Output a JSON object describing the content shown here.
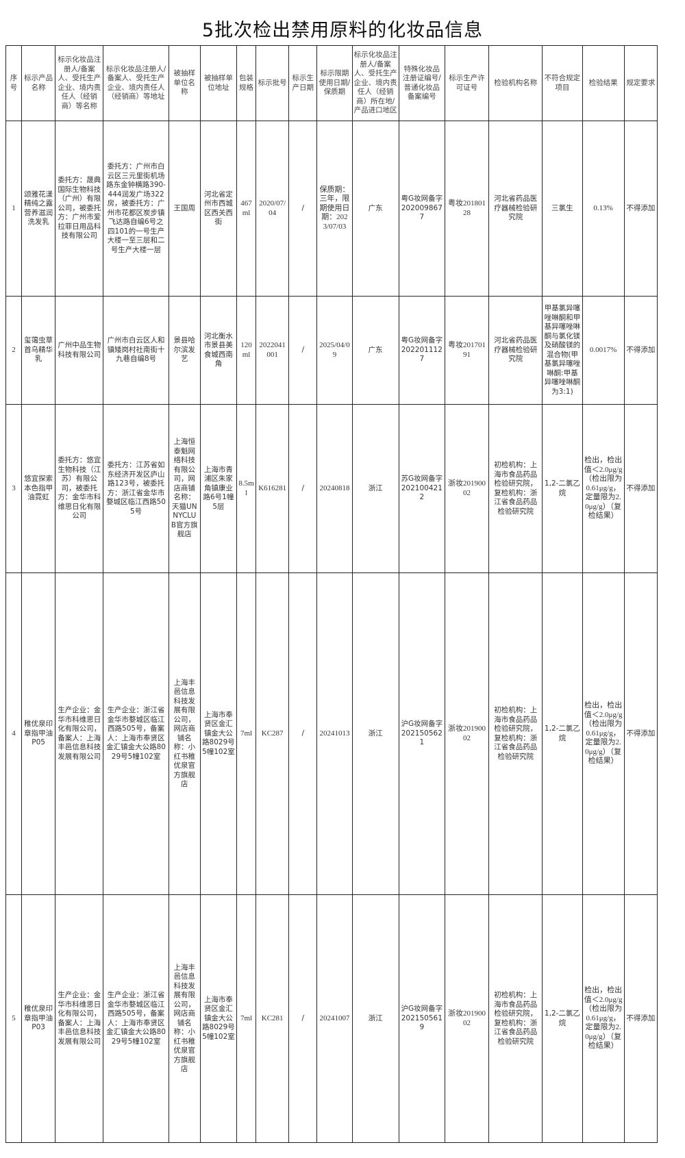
{
  "title": "5批次检出禁用原料的化妆品信息",
  "headers": [
    "序号",
    "标示产品名称",
    "标示化妆品注册人/备案人、受托生产企业、境内责任人（经销商）等名称",
    "标示化妆品注册人/备案人、受托生产企业、境内责任人（经销商）等地址",
    "被抽样单位名称",
    "被抽样单位地址",
    "包装规格",
    "标示批号",
    "标示生产日期",
    "标示限期使用日期/保质期",
    "标示化妆品注册人/备案人、受托生产企业、境内责任人（经销商）所在地/产品进口地区",
    "特殊化妆品注册证编号/普通化妆品备案编号",
    "标示生产许可证号",
    "检验机构名称",
    "不符合规定项目",
    "检验结果",
    "规定要求"
  ],
  "rows": [
    [
      "1",
      "颂雅花漾精纯之露营养滋润洗发乳",
      "委托方：晟典国际生物科技（广州）有限公司，被委托方：广州市爱拉菲日用品科技有限公司",
      "委托方：广州市白云区三元里街机场路东金钟横路390-444润发广场322房，被委托方：广州市花都区炭步镇飞达路自编6号之四101的一号生产大楼一至三层和二号生产大楼一层",
      "王国周",
      "河北省定州市西城区西关西街",
      "467ml",
      "2020/07/04",
      "/",
      "保质期：三年，限期使用日期：2023/07/03",
      "广东",
      "粤G妆网备字2020098677",
      "粤妆20180128",
      "河北省药品医疗器械检验研究院",
      "三氯生",
      "0.13%",
      "不得添加"
    ],
    [
      "2",
      "玺蔼虫草首乌精华乳",
      "广州中品生物科技有限公司",
      "广州市白云区人和镇矮岗村社南街十九巷自编8号",
      "景县哈尔滨发艺",
      "河北衡水市景县美食城西南角",
      "120ml",
      "2022041001",
      "/",
      "2025/04/09",
      "广东",
      "粤G妆网备字2022011127",
      "粤妆20170191",
      "河北省药品医疗器械检验研究院",
      "甲基氯异噻唑啉酮和甲基异噻唑啉酮与氯化镁及硝酸镁的混合物(甲基氯异噻唑啉酮:甲基异噻唑啉酮为3:1)",
      "0.0017%",
      "不得添加"
    ],
    [
      "3",
      "悠宜探索本色指甲油霓虹",
      "委托方：悠宜生物科技（江苏）有限公司，被委托方：金华市科维思日化有限公司",
      "委托方：江苏省如东经济开发区庐山路123号，被委托方：浙江省金华市婺城区临江西路505号",
      "上海恒泰魁网络科技有限公司，网店商铺名称：天猫UNNYCLUB官方旗舰店",
      "上海市青浦区朱家角镇康业路6号1幢5层",
      "8.5ml",
      "K616281",
      "/",
      "20240818",
      "浙江",
      "苏G妆网备字2021004212",
      "浙妆20190002",
      "初检机构：上海市食品药品检验研究院，复检机构：浙江省食品药品检验研究院",
      "1,2-二氯乙烷",
      "检出，检出值＜2.0μg/g（检出限为0.61μg/g，定量限为2.0μg/g）（复检结果）",
      "不得添加"
    ],
    [
      "4",
      "稚优泉印章指甲油P05",
      "生产企业：金华市科维思日化有限公司，备案人：上海丰邑信息科技发展有限公司",
      "生产企业：浙江省金华市婺城区临江西路505号，备案人：上海市奉贤区金汇镇金大公路8029号5幢102室",
      "上海丰邑信息科技发展有限公司，网店商铺名称：小红书稚优泉官方旗舰店",
      "上海市奉贤区金汇镇金大公路8029号5幢102室",
      "7ml",
      "KC287",
      "/",
      "20241013",
      "浙江",
      "沪G妆网备字2021505621",
      "浙妆20190002",
      "初检机构：上海市食品药品检验研究院，复检机构：浙江省食品药品检验研究院",
      "1,2-二氯乙烷",
      "检出，检出值＜2.0μg/g（检出限为0.61μg/g，定量限为2.0μg/g）（复检结果）",
      "不得添加"
    ],
    [
      "5",
      "稚优泉印章指甲油P03",
      "生产企业：金华市科维思日化有限公司，备案人：上海丰邑信息科技发展有限公司",
      "生产企业：浙江省金华市婺城区临江西路505号，备案人：上海市奉贤区金汇镇金大公路8029号5幢102室",
      "上海丰邑信息科技发展有限公司，网店商铺名称：小红书稚优泉官方旗舰店",
      "上海市奉贤区金汇镇金大公路8029号5幢102室",
      "7ml",
      "KC281",
      "/",
      "20241007",
      "浙江",
      "沪G妆网备字2021505619",
      "浙妆20190002",
      "初检机构：上海市食品药品检验研究院，复检机构：浙江省食品药品检验研究院",
      "1,2-二氯乙烷",
      "检出，检出值＜2.0μg/g（检出限为0.61μg/g，定量限为2.0μg/g）（复检结果）",
      "不得添加"
    ]
  ]
}
